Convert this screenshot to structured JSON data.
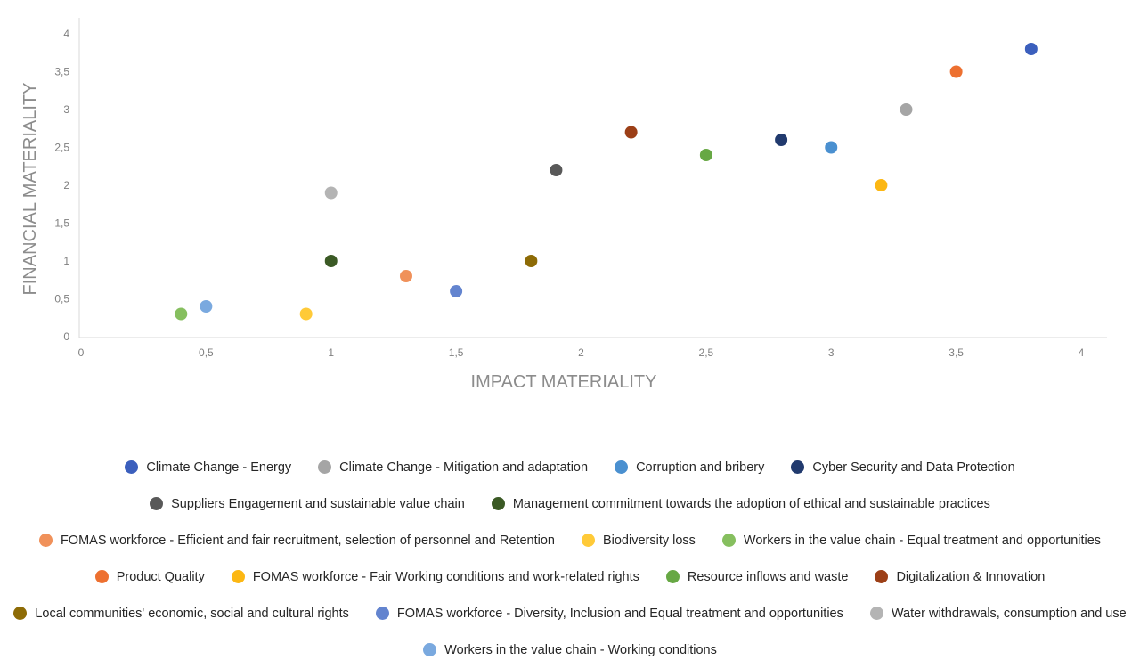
{
  "chart_data": {
    "type": "scatter",
    "xlabel": "IMPACT MATERIALITY",
    "ylabel": "FINANCIAL MATERIALITY",
    "xlim": [
      0,
      4
    ],
    "ylim": [
      0,
      4
    ],
    "x_ticks": [
      "0",
      "0,5",
      "1",
      "1,5",
      "2",
      "2,5",
      "3",
      "3,5",
      "4"
    ],
    "y_ticks": [
      "0",
      "0,5",
      "1",
      "1,5",
      "2",
      "2,5",
      "3",
      "3,5",
      "4"
    ],
    "grid": false,
    "legend_position": "bottom",
    "series": [
      {
        "name": "Climate Change - Energy",
        "color": "#3b5fbd",
        "x": 3.8,
        "y": 3.8
      },
      {
        "name": "Climate Change - Mitigation and adaptation",
        "color": "#a5a5a5",
        "x": 3.3,
        "y": 3.0
      },
      {
        "name": "Corruption and bribery",
        "color": "#4a90d0",
        "x": 3.0,
        "y": 2.5
      },
      {
        "name": "Cyber Security and Data Protection",
        "color": "#213a6e",
        "x": 2.8,
        "y": 2.6
      },
      {
        "name": "Suppliers Engagement and sustainable value chain",
        "color": "#595959",
        "x": 1.9,
        "y": 2.2
      },
      {
        "name": "Management commitment towards the adoption of ethical and sustainable practices",
        "color": "#3b5a25",
        "x": 1.0,
        "y": 1.0
      },
      {
        "name": "FOMAS workforce - Efficient and fair recruitment, selection of personnel and Retention",
        "color": "#f0915a",
        "x": 1.3,
        "y": 0.8
      },
      {
        "name": "Biodiversity loss",
        "color": "#ffca38",
        "x": 0.9,
        "y": 0.3
      },
      {
        "name": "Workers in the value chain - Equal treatment and opportunities",
        "color": "#86bf5f",
        "x": 0.4,
        "y": 0.3
      },
      {
        "name": "Product Quality",
        "color": "#ed7030",
        "x": 3.5,
        "y": 3.5
      },
      {
        "name": "FOMAS workforce - Fair Working conditions and work-related rights",
        "color": "#fcb713",
        "x": 3.2,
        "y": 2.0
      },
      {
        "name": "Resource inflows and waste",
        "color": "#67a844",
        "x": 2.5,
        "y": 2.4
      },
      {
        "name": "Digitalization & Innovation",
        "color": "#9c3f17",
        "x": 2.2,
        "y": 2.7
      },
      {
        "name": "Local communities' economic, social and cultural rights",
        "color": "#8d6b06",
        "x": 1.8,
        "y": 1.0
      },
      {
        "name": "FOMAS workforce - Diversity, Inclusion and Equal treatment and opportunities",
        "color": "#6384cf",
        "x": 1.5,
        "y": 0.6
      },
      {
        "name": "Water withdrawals, consumption and use",
        "color": "#b4b4b4",
        "x": 1.0,
        "y": 1.9
      },
      {
        "name": "Workers in the value chain - Working conditions",
        "color": "#7aa9df",
        "x": 0.5,
        "y": 0.4
      }
    ]
  }
}
